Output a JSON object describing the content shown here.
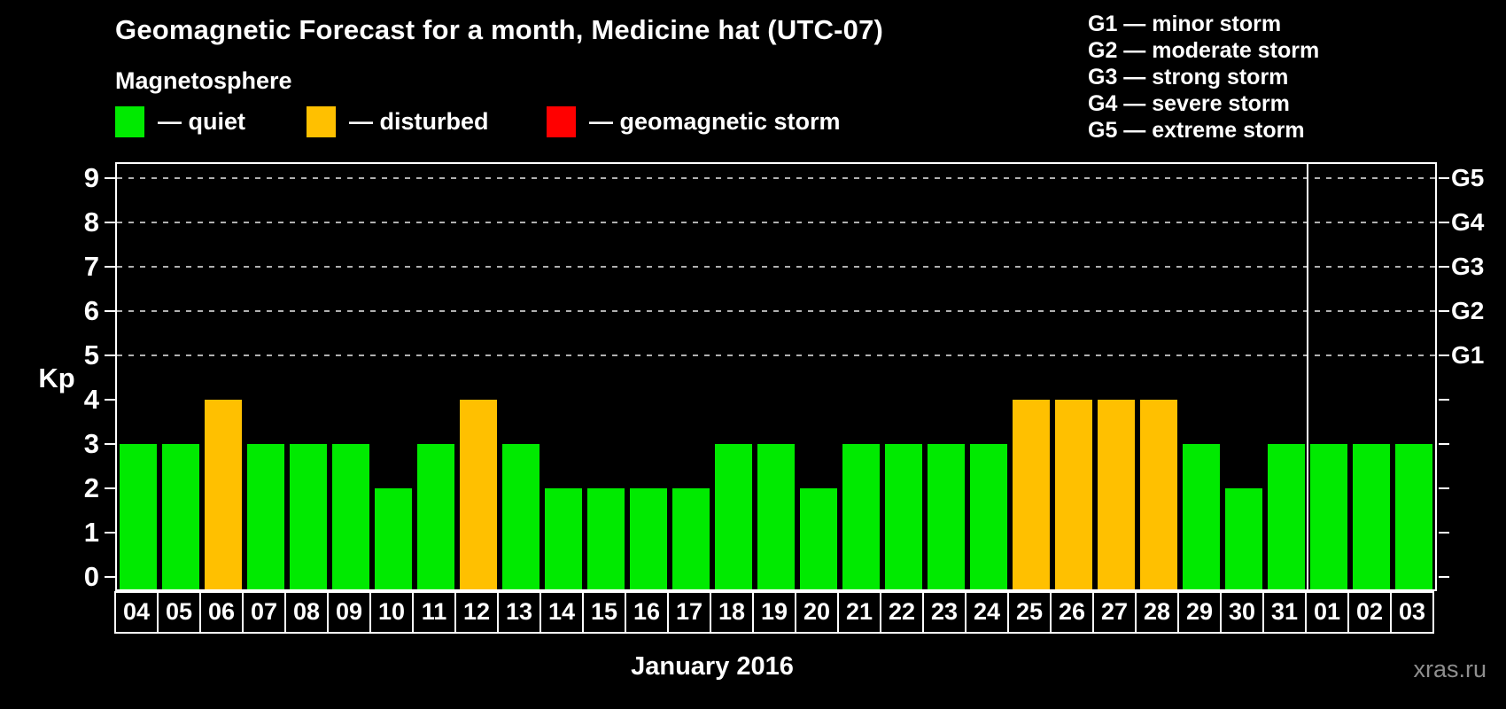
{
  "title": "Geomagnetic Forecast for a month, Medicine hat (UTC-07)",
  "subtitle": "Magnetosphere",
  "legend": {
    "items": [
      {
        "name": "quiet",
        "label": "— quiet",
        "color": "#00ea00"
      },
      {
        "name": "disturbed",
        "label": "— disturbed",
        "color": "#ffc000"
      },
      {
        "name": "storm",
        "label": "— geomagnetic storm",
        "color": "#ff0000"
      }
    ]
  },
  "storm_scale": {
    "items": [
      "G1 — minor storm",
      "G2 — moderate storm",
      "G3 — strong storm",
      "G4 — severe storm",
      "G5 — extreme storm"
    ]
  },
  "watermark": "xras.ru",
  "chart_data": {
    "type": "bar",
    "title": "Geomagnetic Forecast for a month, Medicine hat (UTC-07)",
    "xlabel": "January 2016",
    "ylabel": "Kp",
    "ylim": [
      0,
      9
    ],
    "yticks": [
      0,
      1,
      2,
      3,
      4,
      5,
      6,
      7,
      8,
      9
    ],
    "gridlines_at_kp": [
      5,
      6,
      7,
      8,
      9
    ],
    "grid": "dashed",
    "legend_position": "top",
    "right_axis": [
      {
        "kp": 5,
        "label": "G1"
      },
      {
        "kp": 6,
        "label": "G2"
      },
      {
        "kp": 7,
        "label": "G3"
      },
      {
        "kp": 8,
        "label": "G4"
      },
      {
        "kp": 9,
        "label": "G5"
      }
    ],
    "categories": [
      "04",
      "05",
      "06",
      "07",
      "08",
      "09",
      "10",
      "11",
      "12",
      "13",
      "14",
      "15",
      "16",
      "17",
      "18",
      "19",
      "20",
      "21",
      "22",
      "23",
      "24",
      "25",
      "26",
      "27",
      "28",
      "29",
      "30",
      "31",
      "01",
      "02",
      "03"
    ],
    "values": [
      3,
      3,
      4,
      3,
      3,
      3,
      2,
      3,
      4,
      3,
      2,
      2,
      2,
      2,
      3,
      3,
      2,
      3,
      3,
      3,
      3,
      4,
      4,
      4,
      4,
      3,
      2,
      3,
      3,
      3,
      3
    ],
    "statuses": [
      "quiet",
      "quiet",
      "disturbed",
      "quiet",
      "quiet",
      "quiet",
      "quiet",
      "quiet",
      "disturbed",
      "quiet",
      "quiet",
      "quiet",
      "quiet",
      "quiet",
      "quiet",
      "quiet",
      "quiet",
      "quiet",
      "quiet",
      "quiet",
      "quiet",
      "disturbed",
      "disturbed",
      "disturbed",
      "disturbed",
      "quiet",
      "quiet",
      "quiet",
      "quiet",
      "quiet",
      "quiet"
    ],
    "colors": {
      "quiet": "#00ea00",
      "disturbed": "#ffc000",
      "storm": "#ff0000"
    },
    "month_boundary_after_category": "31"
  }
}
